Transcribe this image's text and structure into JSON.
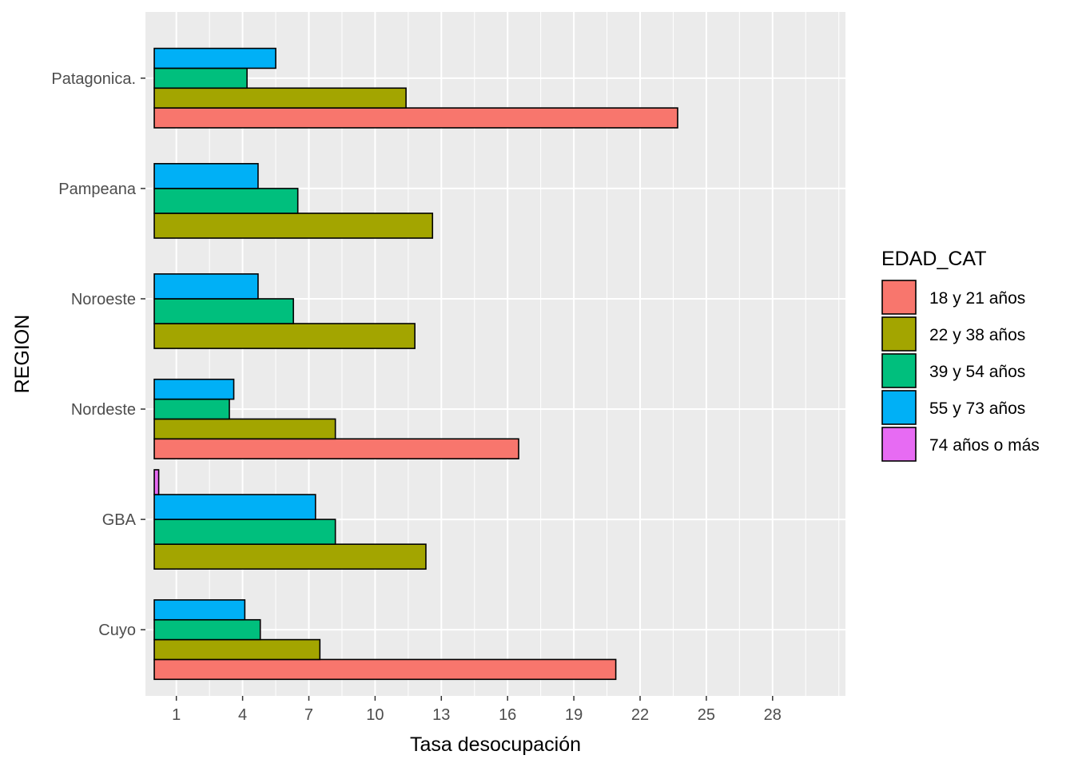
{
  "chart_data": {
    "type": "bar",
    "orientation": "horizontal",
    "position": "dodge",
    "xlabel": "Tasa desocupación",
    "ylabel": "REGION",
    "xlim": [
      -0.4,
      31.3
    ],
    "x_ticks": [
      1,
      4,
      7,
      10,
      13,
      16,
      19,
      22,
      25,
      28
    ],
    "x_tick_labels": [
      "1",
      "4",
      "7",
      "10",
      "13",
      "16",
      "19",
      "22",
      "25",
      "28"
    ],
    "grid": true,
    "categories": [
      "Cuyo",
      "GBA",
      "Nordeste",
      "Noroeste",
      "Pampeana",
      "Patagonica."
    ],
    "legend": {
      "title": "EDAD_CAT",
      "position": "right"
    },
    "series": [
      {
        "name": "18 y 21 años",
        "color": "#F8766D",
        "values": [
          20.9,
          null,
          16.5,
          null,
          null,
          23.7
        ]
      },
      {
        "name": "22 y 38 años",
        "color": "#A3A500",
        "values": [
          7.5,
          12.3,
          8.2,
          11.8,
          12.6,
          11.4
        ]
      },
      {
        "name": "39 y 54 años",
        "color": "#00BF7D",
        "values": [
          4.8,
          8.2,
          3.4,
          6.3,
          6.5,
          4.2
        ]
      },
      {
        "name": "55 y 73 años",
        "color": "#00B0F6",
        "values": [
          4.1,
          7.3,
          3.6,
          4.7,
          4.7,
          5.5
        ]
      },
      {
        "name": "74 años o más",
        "color": "#E76BF3",
        "values": [
          0,
          0.2,
          0,
          0,
          0,
          0
        ]
      }
    ]
  }
}
